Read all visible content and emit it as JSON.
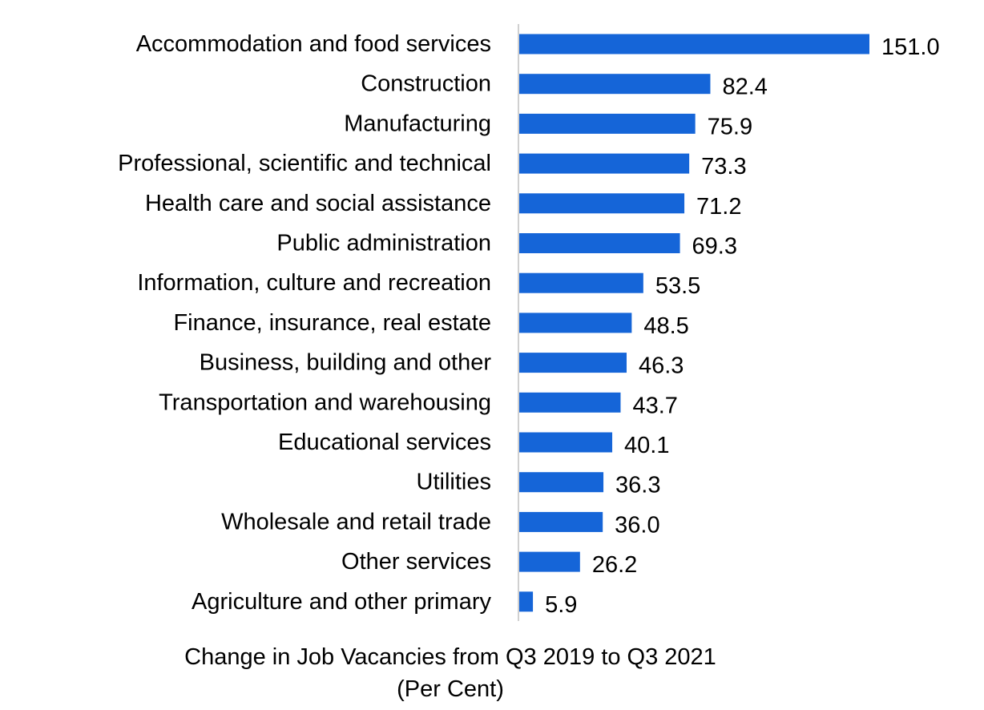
{
  "chart_data": {
    "type": "bar",
    "orientation": "horizontal",
    "categories": [
      "Accommodation and food services",
      "Construction",
      "Manufacturing",
      "Professional, scientific and technical",
      "Health care and social assistance",
      "Public administration",
      "Information, culture and recreation",
      "Finance, insurance, real estate",
      "Business, building and other",
      "Transportation and warehousing",
      "Educational services",
      "Utilities",
      "Wholesale and retail trade",
      "Other services",
      "Agriculture and other primary"
    ],
    "values": [
      151.0,
      82.4,
      75.9,
      73.3,
      71.2,
      69.3,
      53.5,
      48.5,
      46.3,
      43.7,
      40.1,
      36.3,
      36.0,
      26.2,
      5.9
    ],
    "value_labels": [
      "151.0",
      "82.4",
      "75.9",
      "73.3",
      "71.2",
      "69.3",
      "53.5",
      "48.5",
      "46.3",
      "43.7",
      "40.1",
      "36.3",
      "36.0",
      "26.2",
      "5.9"
    ],
    "title": "",
    "xlabel_line1": "Change in Job Vacancies from Q3 2019 to Q3 2021",
    "xlabel_line2": "(Per Cent)",
    "ylabel": "",
    "xlim": [
      0,
      151.0
    ],
    "grid": false,
    "legend": "none",
    "bar_color": "#1565D8",
    "axis_color": "#D0D0D0"
  }
}
